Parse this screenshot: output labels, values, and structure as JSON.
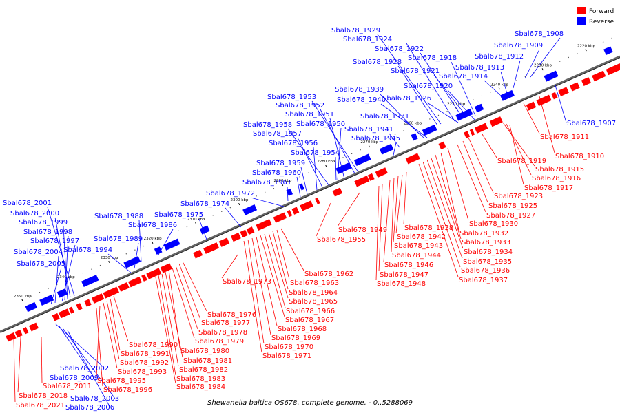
{
  "legend": [
    {
      "label": "Forward",
      "color": "#ff0000"
    },
    {
      "label": "Reverse",
      "color": "#0000ff"
    }
  ],
  "caption": "Shewanella baltica OS678, complete genome. - 0..5288069",
  "colors": {
    "forward": "#ff0000",
    "reverse": "#0000ff",
    "backbone": "#666666"
  },
  "ticks": [
    "2220 kbp",
    "2230 kbp",
    "2240 kbp",
    "2250 kbp",
    "2260 kbp",
    "2270 kbp",
    "2280 kbp",
    "2290 kbp",
    "2300 kbp",
    "2310 kbp",
    "2320 kbp",
    "2330 kbp",
    "2340 kbp",
    "2350 kbp"
  ],
  "reverse_labels": [
    "Sbal678_1929",
    "Sbal678_1924",
    "Sbal678_1922",
    "Sbal678_1918",
    "Sbal678_1928",
    "Sbal678_1921",
    "Sbal678_1920",
    "Sbal678_1926",
    "Sbal678_1939",
    "Sbal678_1940",
    "Sbal678_1908",
    "Sbal678_1909",
    "Sbal678_1912",
    "Sbal678_1913",
    "Sbal678_1914",
    "Sbal678_1907",
    "Sbal678_1953",
    "Sbal678_1952",
    "Sbal678_1951",
    "Sbal678_1950",
    "Sbal678_1931",
    "Sbal678_1941",
    "Sbal678_1945",
    "Sbal678_1958",
    "Sbal678_1957",
    "Sbal678_1956",
    "Sbal678_1954",
    "Sbal678_1959",
    "Sbal678_1960",
    "Sbal678_1961",
    "Sbal678_1972",
    "Sbal678_1974",
    "Sbal678_1975",
    "Sbal678_2001",
    "Sbal678_2000",
    "Sbal678_1999",
    "Sbal678_1998",
    "Sbal678_1997",
    "Sbal678_2004",
    "Sbal678_2005",
    "Sbal678_1988",
    "Sbal678_1986",
    "Sbal678_1989",
    "Sbal678_1994",
    "Sbal678_2002",
    "Sbal678_2009",
    "Sbal678_2003",
    "Sbal678_2006"
  ],
  "forward_labels": [
    "Sbal678_1911",
    "Sbal678_1910",
    "Sbal678_1919",
    "Sbal678_1915",
    "Sbal678_1916",
    "Sbal678_1917",
    "Sbal678_1923",
    "Sbal678_1925",
    "Sbal678_1927",
    "Sbal678_1930",
    "Sbal678_1932",
    "Sbal678_1933",
    "Sbal678_1934",
    "Sbal678_1935",
    "Sbal678_1936",
    "Sbal678_1937",
    "Sbal678_1938",
    "Sbal678_1942",
    "Sbal678_1943",
    "Sbal678_1944",
    "Sbal678_1946",
    "Sbal678_1947",
    "Sbal678_1948",
    "Sbal678_1949",
    "Sbal678_1955",
    "Sbal678_1962",
    "Sbal678_1963",
    "Sbal678_1964",
    "Sbal678_1965",
    "Sbal678_1966",
    "Sbal678_1967",
    "Sbal678_1968",
    "Sbal678_1969",
    "Sbal678_1970",
    "Sbal678_1971",
    "Sbal678_1973",
    "Sbal678_1976",
    "Sbal678_1977",
    "Sbal678_1978",
    "Sbal678_1979",
    "Sbal678_1980",
    "Sbal678_1981",
    "Sbal678_1982",
    "Sbal678_1983",
    "Sbal678_1984",
    "Sbal678_1990",
    "Sbal678_1991",
    "Sbal678_1992",
    "Sbal678_1993",
    "Sbal678_1995",
    "Sbal678_1996",
    "Sbal678_2011",
    "Sbal678_2018",
    "Sbal678_2021"
  ]
}
